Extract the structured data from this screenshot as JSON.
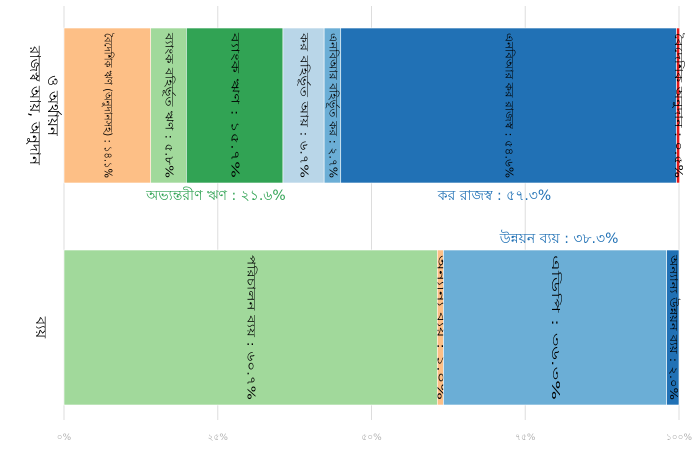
{
  "chart_data": {
    "type": "bar",
    "orientation": "horizontal",
    "stacked": true,
    "xlim": [
      0,
      100
    ],
    "x_ticks": [
      "০%",
      "২৫%",
      "৫০%",
      "৭৫%",
      "১০০%"
    ],
    "grid": true,
    "categories": [
      "রাজস্ব আয়, অনুদান ও অর্থায়ন",
      "ব্যয়"
    ],
    "bars": [
      {
        "category": "রাজস্ব আয়, অনুদান ও অর্থায়ন",
        "segments": [
          {
            "label": "বৈদেশিক ঋণ (অনুদানসহ) : ১৪.১%",
            "value": 14.1,
            "color": "#fdbf86"
          },
          {
            "label": "ব্যাংক বহির্ভূত ঋণ : ৫.৮%",
            "value": 5.8,
            "color": "#a1d99b"
          },
          {
            "label": "ব্যাংক ঋণ : ১৫.৭%",
            "value": 15.7,
            "color": "#31a354"
          },
          {
            "label": "কর বহির্ভূত আয় : ৬.৭%",
            "value": 6.7,
            "color": "#b9d6e8"
          },
          {
            "label": "এনবিআর বহির্ভূত কর : ২.৭%",
            "value": 2.7,
            "color": "#6baed6"
          },
          {
            "label": "এনবিআর কর রাজস্ব : ৫৪.৬%",
            "value": 54.6,
            "color": "#2171b5"
          },
          {
            "label": "বৈদেশিক অনুদান : ০.৫%",
            "value": 0.5,
            "color": "#e31a1c"
          }
        ]
      },
      {
        "category": "ব্যয়",
        "segments": [
          {
            "label": "পরিচালন ব্যয় : ৬০.৭%",
            "value": 60.7,
            "color": "#a1d99b"
          },
          {
            "label": "অন্যান্য ব্যয় : ১.০%",
            "value": 1.0,
            "color": "#fdbf86"
          },
          {
            "label": "এডিপি : ৩৬.৩%",
            "value": 36.3,
            "color": "#6baed6"
          },
          {
            "label": "অন্যান্য উন্নয়ন ব্যয় : ২.০%",
            "value": 2.0,
            "color": "#2171b5"
          }
        ]
      }
    ],
    "annotations": [
      {
        "text": "অভ্যন্তরীণ ঋণ : ২১.৬%",
        "color": "#31a354",
        "center_value": 24.7,
        "bar": 0
      },
      {
        "text": "কর রাজস্ব : ৫৭.৩%",
        "color": "#2171b5",
        "center_value": 70.0,
        "bar": 0
      },
      {
        "text": "উন্নয়ন ব্যয় : ৩৮.৩%",
        "color": "#2171b5",
        "center_value": 80.5,
        "bar": 1
      }
    ]
  }
}
